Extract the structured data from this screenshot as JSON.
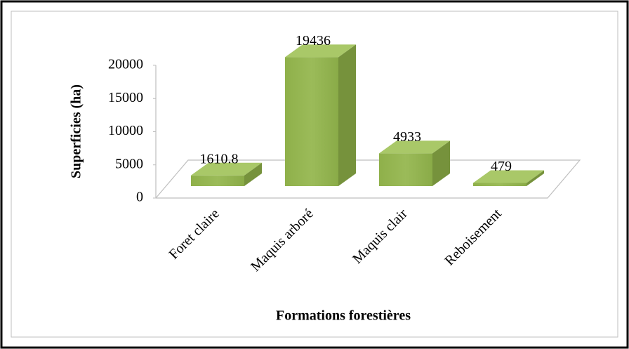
{
  "chart_data": {
    "type": "bar",
    "xlabel": "Formations forestières",
    "ylabel": "Superficies (ha)",
    "categories": [
      "Foret claire",
      "Maquis arboré",
      "Maquis clair",
      "Reboisement"
    ],
    "values": [
      1610.8,
      19436,
      4933,
      479
    ],
    "color": "#9bbb59",
    "ylim": [
      0,
      20000
    ],
    "yticks": [
      0,
      5000,
      10000,
      15000,
      20000
    ]
  }
}
